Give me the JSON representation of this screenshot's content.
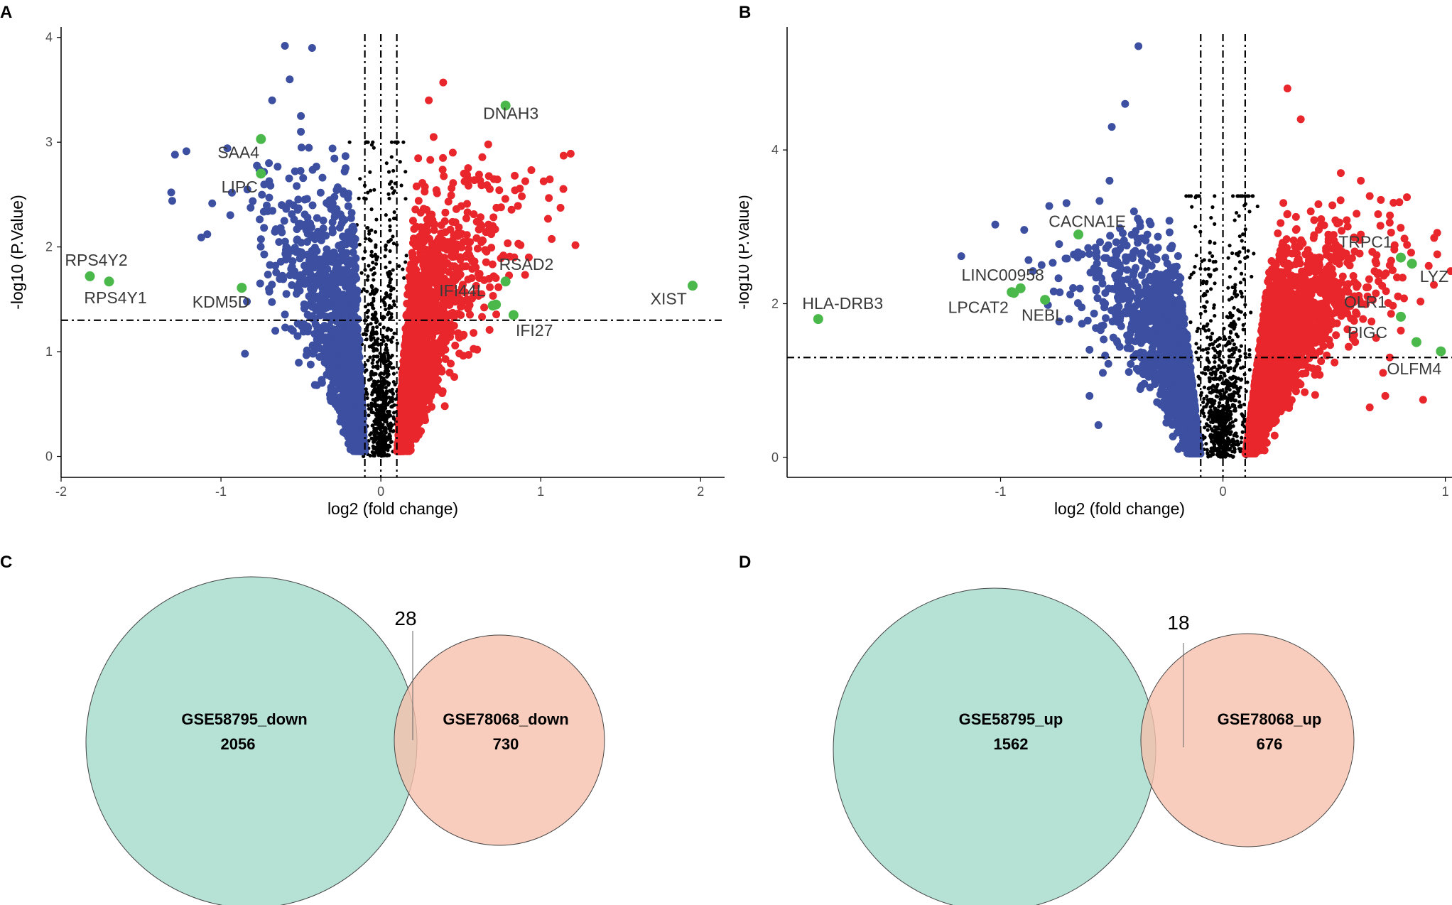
{
  "panels": {
    "a": "A",
    "b": "B",
    "c": "C",
    "d": "D"
  },
  "colors": {
    "down": "#3c4fa0",
    "up": "#e8262c",
    "ns": "#000000",
    "highlight": "#4bb84b",
    "venn_left": "#b2e0d4",
    "venn_right": "#f6c0ac",
    "axis": "#000000",
    "tick_text": "#4d4d4d"
  },
  "chart_data": [
    {
      "panel": "A",
      "type": "scatter",
      "title": "",
      "xlabel": "log2 (fold change)",
      "ylabel": "-log10 (P.Value)",
      "xlim": [
        -2.0,
        2.15
      ],
      "ylim": [
        -0.2,
        4.1
      ],
      "xticks": [
        -2,
        -1,
        0,
        1,
        2
      ],
      "xtick_labels": [
        "-2",
        "-1",
        "0",
        "1",
        "2"
      ],
      "yticks": [
        0,
        1,
        2,
        3,
        4
      ],
      "ytick_labels": [
        "0",
        "1",
        "2",
        "3",
        "4"
      ],
      "threshold_fc": 0.1,
      "threshold_p": 1.3,
      "cloud": {
        "down_points": 1400,
        "up_points": 2000,
        "ns_points": 750,
        "down_center": -0.2,
        "up_center": 0.25,
        "max_y": 3.0,
        "spread": 0.55,
        "seed": 11
      },
      "scattered_points": {
        "down": [
          [
            -0.6,
            3.92
          ],
          [
            -0.43,
            3.9
          ],
          [
            -0.57,
            3.6
          ],
          [
            -0.68,
            3.4
          ],
          [
            -0.5,
            3.25
          ],
          [
            -0.5,
            3.1
          ],
          [
            -0.7,
            2.8
          ],
          [
            -0.62,
            2.4
          ],
          [
            -0.7,
            1.6
          ],
          [
            -0.55,
            1.2
          ],
          [
            -0.66,
            1.2
          ],
          [
            -0.85,
            0.98
          ],
          [
            -0.4,
            0.68
          ]
        ],
        "up": [
          [
            0.39,
            3.57
          ],
          [
            0.3,
            3.4
          ],
          [
            0.33,
            3.05
          ],
          [
            0.45,
            2.9
          ],
          [
            0.52,
            2.7
          ],
          [
            0.63,
            2.2
          ],
          [
            0.7,
            2.2
          ],
          [
            0.56,
            1.9
          ],
          [
            0.63,
            1.55
          ],
          [
            0.5,
            1.35
          ],
          [
            0.4,
            0.48
          ]
        ]
      },
      "highlights": [
        {
          "x": 0.78,
          "y": 3.35,
          "label": "DNAH3",
          "lx": 0.64,
          "ly": 3.22,
          "anchor": "start"
        },
        {
          "x": -0.75,
          "y": 3.03,
          "label": "SAA4",
          "lx": -0.76,
          "ly": 2.85,
          "anchor": "end"
        },
        {
          "x": -0.75,
          "y": 2.7,
          "label": "LIPC",
          "lx": -0.77,
          "ly": 2.52,
          "anchor": "end"
        },
        {
          "x": -1.82,
          "y": 1.72,
          "label": "RPS4Y2",
          "lx": -1.78,
          "ly": 1.82,
          "anchor": "middle"
        },
        {
          "x": -1.7,
          "y": 1.67,
          "label": "RPS4Y1",
          "lx": -1.66,
          "ly": 1.46,
          "anchor": "middle"
        },
        {
          "x": -0.87,
          "y": 1.61,
          "label": "KDM5D",
          "lx": -1.0,
          "ly": 1.42,
          "anchor": "middle"
        },
        {
          "x": 0.78,
          "y": 1.67,
          "label": "RSAD2",
          "lx": 0.91,
          "ly": 1.78,
          "anchor": "middle"
        },
        {
          "x": 0.7,
          "y": 1.44,
          "label": "IFI44L",
          "lx": 0.51,
          "ly": 1.53,
          "anchor": "middle"
        },
        {
          "x": 0.72,
          "y": 1.45,
          "label": "",
          "lx": 0,
          "ly": 0,
          "anchor": "middle"
        },
        {
          "x": 0.83,
          "y": 1.35,
          "label": "IFI27",
          "lx": 0.96,
          "ly": 1.15,
          "anchor": "middle"
        },
        {
          "x": 1.95,
          "y": 1.63,
          "label": "XIST",
          "lx": 1.8,
          "ly": 1.45,
          "anchor": "middle"
        }
      ]
    },
    {
      "panel": "B",
      "type": "scatter",
      "title": "",
      "xlabel": "log2 (fold change)",
      "ylabel": "-log10 (P.Value)",
      "xlim": [
        -1.96,
        1.03
      ],
      "ylim": [
        -0.26,
        5.6
      ],
      "xticks": [
        -1,
        0,
        1
      ],
      "xtick_labels": [
        "-1",
        "0",
        "1"
      ],
      "yticks": [
        0,
        2,
        4
      ],
      "ytick_labels": [
        "0",
        "2",
        "4"
      ],
      "threshold_fc": 0.1,
      "threshold_p": 1.3,
      "cloud": {
        "down_points": 1700,
        "up_points": 2700,
        "ns_points": 800,
        "down_center": -0.25,
        "up_center": 0.27,
        "max_y": 3.4,
        "spread": 0.38,
        "seed": 29
      },
      "scattered_points": {
        "down": [
          [
            -0.38,
            5.35
          ],
          [
            -0.44,
            4.6
          ],
          [
            -0.5,
            4.3
          ],
          [
            -0.51,
            3.6
          ],
          [
            -0.4,
            3.2
          ],
          [
            -0.48,
            2.8
          ],
          [
            -0.53,
            2.0
          ],
          [
            -0.6,
            1.4
          ],
          [
            -0.54,
            1.1
          ],
          [
            -0.6,
            0.8
          ],
          [
            -0.56,
            0.42
          ]
        ],
        "up": [
          [
            0.29,
            4.8
          ],
          [
            0.35,
            4.4
          ],
          [
            0.53,
            3.7
          ],
          [
            0.62,
            3.6
          ],
          [
            0.66,
            3.4
          ],
          [
            0.71,
            3.35
          ],
          [
            0.62,
            2.9
          ],
          [
            0.75,
            2.5
          ],
          [
            0.7,
            2.4
          ],
          [
            0.63,
            1.8
          ],
          [
            0.8,
            1.65
          ],
          [
            0.75,
            1.3
          ],
          [
            0.72,
            1.1
          ],
          [
            0.73,
            0.8
          ],
          [
            0.9,
            0.75
          ],
          [
            0.66,
            0.65
          ]
        ]
      },
      "highlights": [
        {
          "x": -0.65,
          "y": 2.9,
          "label": "CACNA1E",
          "lx": -0.61,
          "ly": 3.0,
          "anchor": "middle"
        },
        {
          "x": -0.91,
          "y": 2.2,
          "label": "LINC00958",
          "lx": -0.99,
          "ly": 2.3,
          "anchor": "middle"
        },
        {
          "x": -0.95,
          "y": 2.15,
          "label": "",
          "lx": 0,
          "ly": 0,
          "anchor": "middle"
        },
        {
          "x": -0.8,
          "y": 2.05,
          "label": "NEBL",
          "lx": -0.81,
          "ly": 1.78,
          "anchor": "middle"
        },
        {
          "x": -0.94,
          "y": 2.14,
          "label": "LPCAT2",
          "lx": -1.1,
          "ly": 1.88,
          "anchor": "middle"
        },
        {
          "x": -1.82,
          "y": 1.8,
          "label": "HLA-DRB3",
          "lx": -1.71,
          "ly": 1.93,
          "anchor": "middle"
        },
        {
          "x": 0.8,
          "y": 2.6,
          "label": "TRPC1",
          "lx": 0.64,
          "ly": 2.73,
          "anchor": "middle"
        },
        {
          "x": 0.85,
          "y": 2.52,
          "label": "LYZ",
          "lx": 0.95,
          "ly": 2.28,
          "anchor": "middle"
        },
        {
          "x": 0.8,
          "y": 1.83,
          "label": "OLR1",
          "lx": 0.64,
          "ly": 1.95,
          "anchor": "middle"
        },
        {
          "x": 0.87,
          "y": 1.5,
          "label": "PIGC",
          "lx": 0.65,
          "ly": 1.55,
          "anchor": "middle"
        },
        {
          "x": 0.98,
          "y": 1.38,
          "label": "OLFM4",
          "lx": 0.86,
          "ly": 1.08,
          "anchor": "middle"
        }
      ]
    },
    {
      "panel": "C",
      "type": "venn",
      "title": "",
      "sets": [
        {
          "name": "GSE58795_down",
          "count": "2056"
        },
        {
          "name": "GSE78068_down",
          "count": "730"
        }
      ],
      "overlap": "28"
    },
    {
      "panel": "D",
      "type": "venn",
      "title": "",
      "sets": [
        {
          "name": "GSE58795_up",
          "count": "1562"
        },
        {
          "name": "GSE78068_up",
          "count": "676"
        }
      ],
      "overlap": "18"
    }
  ]
}
